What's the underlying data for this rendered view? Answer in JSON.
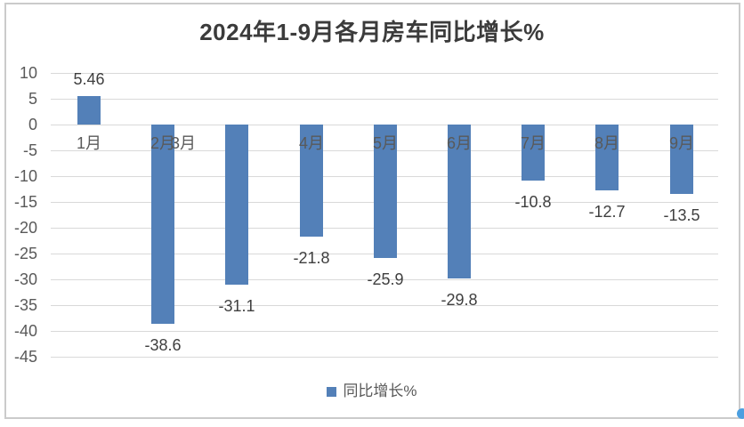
{
  "chart_data": {
    "type": "bar",
    "title": "2024年1-9月各月房车同比增长%",
    "categories": [
      "1月",
      "2月",
      "3月",
      "4月",
      "5月",
      "6月",
      "7月",
      "8月",
      "9月"
    ],
    "series": [
      {
        "name": "同比增长%",
        "values": [
          5.46,
          -38.6,
          -31.1,
          -21.8,
          -25.9,
          -29.8,
          -10.8,
          -12.7,
          -13.5
        ]
      }
    ],
    "data_labels": [
      "5.46",
      "-38.6",
      "-31.1",
      "-21.8",
      "-25.9",
      "-29.8",
      "-10.8",
      "-12.7",
      "-13.5"
    ],
    "xlabel": "",
    "ylabel": "",
    "y_axis": {
      "ticks": [
        10,
        5,
        0,
        -5,
        -10,
        -15,
        -20,
        -25,
        -30,
        -35,
        -40,
        -45
      ],
      "min": -45,
      "max": 10,
      "step": 5
    },
    "ylim": [
      -45,
      10
    ],
    "grid": true,
    "legend": {
      "position": "bottom",
      "entries": [
        "同比增长%"
      ]
    },
    "colors": {
      "bar": "#5380B8",
      "gridline": "#D9D9D9",
      "tick_text": "#595959",
      "data_label_text": "#3F3F3F",
      "title_text": "#3B3B3B",
      "legend_text": "#595959",
      "frame_border": "#CBCBCB",
      "corner_dot": "#4C9FE0"
    },
    "layout": {
      "category_label_x_offsets": [
        0,
        0,
        -60,
        0,
        0,
        0,
        0,
        0,
        0
      ],
      "category_labels_position": "below_zero_line"
    }
  }
}
